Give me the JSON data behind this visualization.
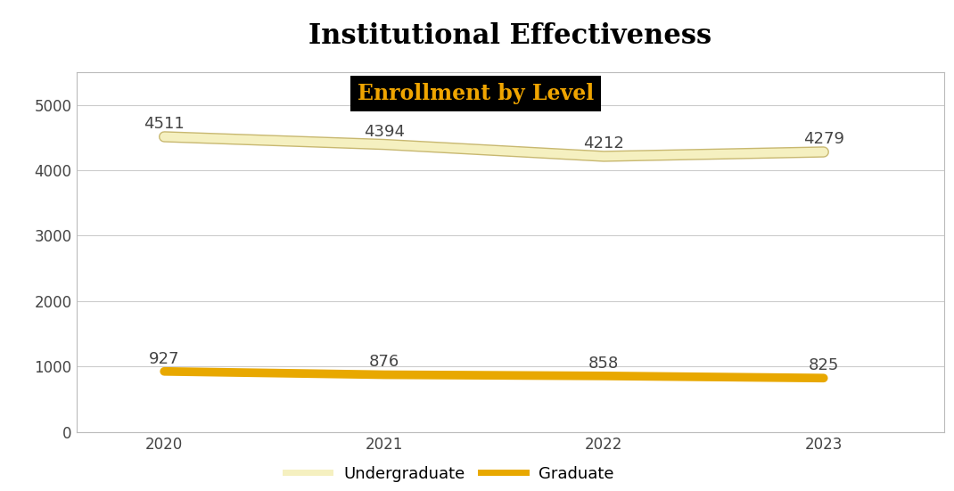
{
  "title": "Institutional Effectiveness",
  "chart_title": "Enrollment by Level",
  "years": [
    2020,
    2021,
    2022,
    2023
  ],
  "undergraduate": [
    4511,
    4394,
    4212,
    4279
  ],
  "graduate": [
    927,
    876,
    858,
    825
  ],
  "undergrad_color": "#F5F0C0",
  "undergrad_edge_color": "#C8B870",
  "grad_color": "#E8A800",
  "header_bg": "#F0A500",
  "chart_title_bg": "#000000",
  "chart_title_color": "#F0A500",
  "title_color": "#000000",
  "line_width": 7,
  "ylim": [
    0,
    5500
  ],
  "yticks": [
    0,
    1000,
    2000,
    3000,
    4000,
    5000
  ],
  "background_color": "#FFFFFF",
  "plot_bg": "#FFFFFF",
  "grid_color": "#CCCCCC",
  "legend_labels": [
    "Undergraduate",
    "Graduate"
  ],
  "label_color": "#444444",
  "label_fontsize": 13,
  "tick_fontsize": 12
}
